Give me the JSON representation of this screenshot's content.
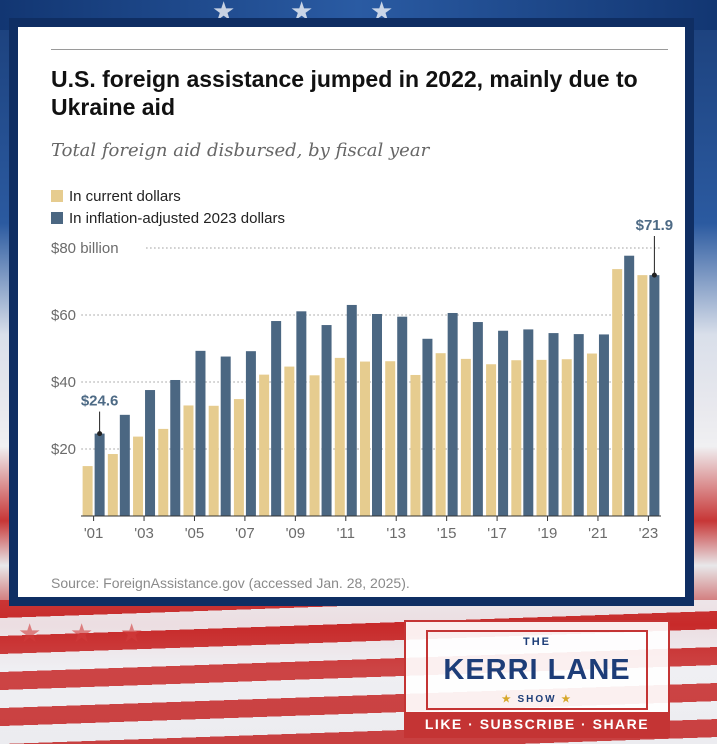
{
  "title": "U.S. foreign assistance jumped in 2022, mainly due to Ukraine aid",
  "subtitle": "Total foreign aid disbursed, by fiscal year",
  "legend": {
    "current": "In current dollars",
    "adjusted": "In inflation-adjusted 2023 dollars"
  },
  "source": "Source: ForeignAssistance.gov (accessed Jan. 28, 2025).",
  "colors": {
    "current": "#e6cc8f",
    "adjusted": "#4b6782",
    "frame": "#0f2e63",
    "brand_red": "#c43434"
  },
  "chart_data": {
    "type": "bar",
    "title": "U.S. foreign assistance jumped in 2022, mainly due to Ukraine aid",
    "xlabel": "",
    "ylabel": "",
    "ylim": [
      0,
      80
    ],
    "y_ticks": [
      {
        "value": 20,
        "label": "$20"
      },
      {
        "value": 40,
        "label": "$40"
      },
      {
        "value": 60,
        "label": "$60"
      },
      {
        "value": 80,
        "label": "$80 billion"
      }
    ],
    "categories": [
      2001,
      2002,
      2003,
      2004,
      2005,
      2006,
      2007,
      2008,
      2009,
      2010,
      2011,
      2012,
      2013,
      2014,
      2015,
      2016,
      2017,
      2018,
      2019,
      2020,
      2021,
      2022,
      2023
    ],
    "x_tick_labels": [
      {
        "year": 2001,
        "label": "'01"
      },
      {
        "year": 2003,
        "label": "'03"
      },
      {
        "year": 2005,
        "label": "'05"
      },
      {
        "year": 2007,
        "label": "'07"
      },
      {
        "year": 2009,
        "label": "'09"
      },
      {
        "year": 2011,
        "label": "'11"
      },
      {
        "year": 2013,
        "label": "'13"
      },
      {
        "year": 2015,
        "label": "'15"
      },
      {
        "year": 2017,
        "label": "'17"
      },
      {
        "year": 2019,
        "label": "'19"
      },
      {
        "year": 2021,
        "label": "'21"
      },
      {
        "year": 2023,
        "label": "'23"
      }
    ],
    "series": [
      {
        "name": "In current dollars",
        "key": "current",
        "values": [
          14.9,
          18.5,
          23.7,
          26.0,
          33.0,
          32.9,
          34.9,
          42.2,
          44.6,
          42.0,
          47.2,
          46.1,
          46.2,
          42.1,
          48.6,
          46.9,
          45.3,
          46.5,
          46.6,
          46.8,
          48.5,
          73.7,
          71.9
        ]
      },
      {
        "name": "In inflation-adjusted 2023 dollars",
        "key": "adjusted",
        "values": [
          24.6,
          30.2,
          37.6,
          40.6,
          49.3,
          47.6,
          49.2,
          58.2,
          61.1,
          57.0,
          63.0,
          60.3,
          59.5,
          52.9,
          60.6,
          57.9,
          55.3,
          55.7,
          54.6,
          54.3,
          54.2,
          77.7,
          71.9
        ]
      }
    ],
    "annotations": [
      {
        "label": "$24.6",
        "series": "adjusted",
        "year": 2001,
        "value": 24.6
      },
      {
        "label": "$71.9",
        "series": "adjusted",
        "year": 2023,
        "value": 71.9
      }
    ],
    "gridlines": true,
    "legend_position": "top-left"
  },
  "brand": {
    "the": "THE",
    "name": "KERRI LANE",
    "show": "SHOW",
    "cta": "LIKE · SUBSCRIBE · SHARE"
  }
}
